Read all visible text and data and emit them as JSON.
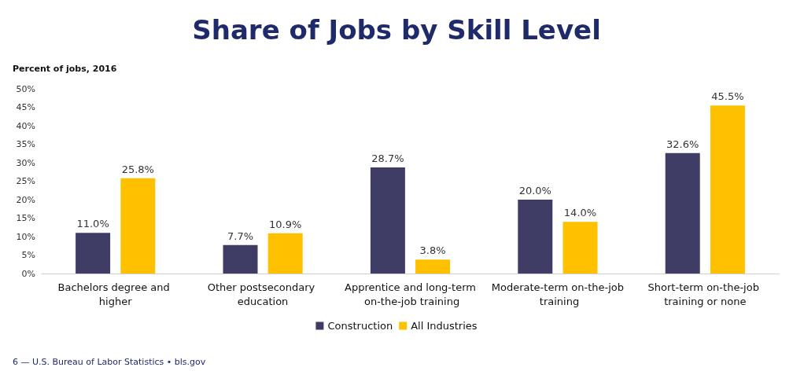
{
  "chart_data": {
    "type": "bar",
    "title": "Share of Jobs by Skill Level",
    "ylabel": "Percent of jobs, 2016",
    "categories": [
      "Bachelors degree and higher",
      "Other postsecondary education",
      "Apprentice and long-term on-the-job training",
      "Moderate-term on-the-job training",
      "Short-term on-the-job training or none"
    ],
    "series": [
      {
        "name": "Construction",
        "color": "#3f3d66",
        "values": [
          11.0,
          7.7,
          28.7,
          20.0,
          32.6
        ],
        "value_labels": [
          "11.0%",
          "7.7%",
          "28.7%",
          "20.0%",
          "32.6%"
        ]
      },
      {
        "name": "All Industries",
        "color": "#ffc000",
        "values": [
          25.8,
          10.9,
          3.8,
          14.0,
          45.5
        ],
        "value_labels": [
          "25.8%",
          "10.9%",
          "3.8%",
          "14.0%",
          "45.5%"
        ]
      }
    ],
    "ylim": [
      0,
      50
    ],
    "yticks": [
      {
        "value": 0,
        "label": "0%"
      },
      {
        "value": 5,
        "label": "5%"
      },
      {
        "value": 10,
        "label": "10%"
      },
      {
        "value": 15,
        "label": "15%"
      },
      {
        "value": 20,
        "label": "20%"
      },
      {
        "value": 25,
        "label": "25%"
      },
      {
        "value": 30,
        "label": "30%"
      },
      {
        "value": 35,
        "label": "35%"
      },
      {
        "value": 40,
        "label": "40%"
      },
      {
        "value": 45,
        "label": "45%"
      },
      {
        "value": 50,
        "label": "50%"
      }
    ],
    "grid": false,
    "legend": "bottom",
    "annotations": [
      "6 — U.S. Bureau of Labor Statistics • bls.gov"
    ]
  }
}
